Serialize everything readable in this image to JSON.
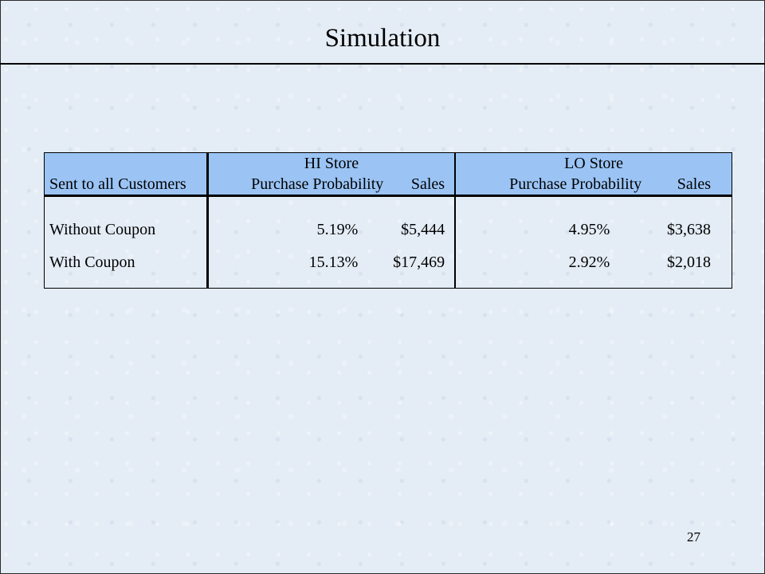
{
  "slide": {
    "title": "Simulation",
    "page_number": "27"
  },
  "table": {
    "header_row1": {
      "col0": "",
      "hi_store": "HI Store",
      "lo_store": "LO Store"
    },
    "header_row2": {
      "col0": "Sent to all Customers",
      "hi_prob": "Purchase Probability",
      "hi_sales": "Sales",
      "lo_prob": "Purchase Probability",
      "lo_sales": "Sales"
    },
    "rows": [
      {
        "label": "Without Coupon",
        "hi_prob": "5.19%",
        "hi_sales": "$5,444",
        "lo_prob": "4.95%",
        "lo_sales": "$3,638"
      },
      {
        "label": "With Coupon",
        "hi_prob": "15.13%",
        "hi_sales": "$17,469",
        "lo_prob": "2.92%",
        "lo_sales": "$2,018"
      }
    ]
  },
  "colors": {
    "header_fill": "#9bc4f5",
    "background": "#e4ecf5"
  }
}
